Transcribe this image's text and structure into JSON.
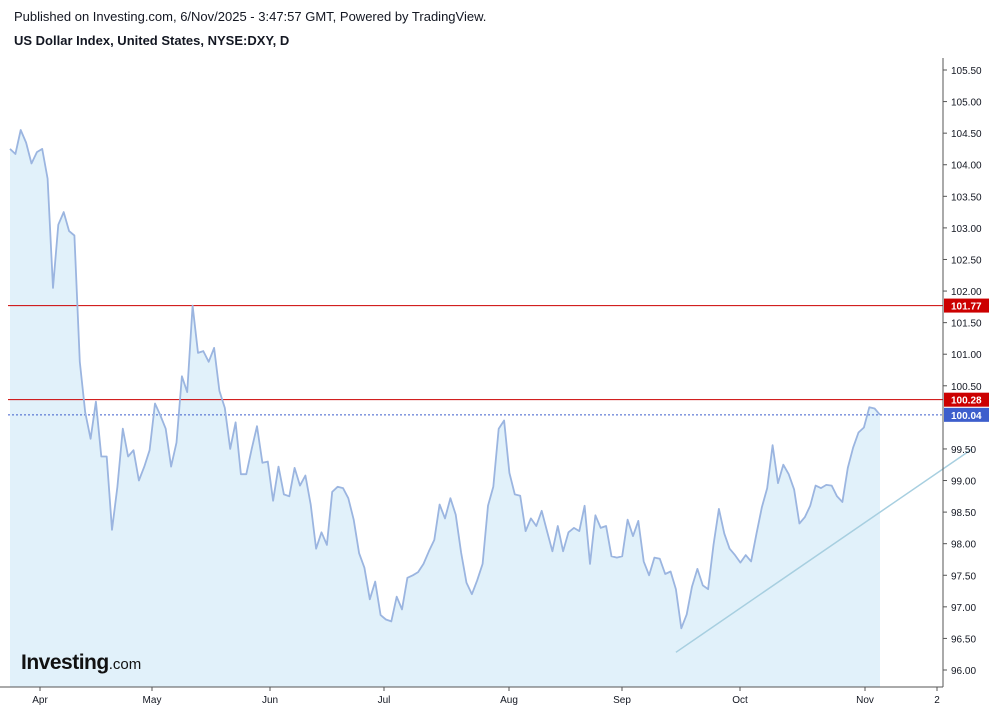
{
  "header": {
    "published": "Published on Investing.com, 6/Nov/2025 - 3:47:57 GMT, Powered by TradingView.",
    "title": "US Dollar Index, United States, NYSE:DXY, D"
  },
  "logo": {
    "main": "Investing",
    "tld": ".com"
  },
  "colors": {
    "line": "#9bb5e0",
    "fill": "#e1f1fa",
    "resistance": "#cc0000",
    "current": "#3d5ecc",
    "trendline": "#a7cfe0",
    "grid": "#e0e3eb"
  },
  "chart_data": {
    "type": "line",
    "title": "US Dollar Index, United States, NYSE:DXY, D",
    "xlabel": "",
    "ylabel": "",
    "ylim": [
      95.8,
      105.6
    ],
    "x_ticks": [
      "Apr",
      "May",
      "Jun",
      "Jul",
      "Aug",
      "Sep",
      "Oct",
      "Nov",
      "2"
    ],
    "y_ticks": [
      "105.50",
      "105.00",
      "104.50",
      "104.00",
      "103.50",
      "103.00",
      "102.50",
      "102.00",
      "101.50",
      "101.00",
      "100.50",
      "99.50",
      "99.00",
      "98.50",
      "98.00",
      "97.50",
      "97.00",
      "96.50",
      "96.00"
    ],
    "series": [
      {
        "values": [
          104.25,
          104.17,
          104.55,
          104.35,
          104.02,
          104.2,
          104.25,
          103.78,
          102.05,
          103.05,
          103.25,
          102.95,
          102.88,
          100.88,
          100.08,
          99.66,
          100.25,
          99.38,
          99.38,
          98.22,
          98.9,
          99.82,
          99.38,
          99.48,
          99.0,
          99.22,
          99.48,
          100.22,
          100.03,
          99.82,
          99.22,
          99.6,
          100.65,
          100.4,
          101.77,
          101.02,
          101.05,
          100.88,
          101.1,
          100.42,
          100.15,
          99.5,
          99.92,
          99.1,
          99.1,
          99.5,
          99.86,
          99.28,
          99.3,
          98.68,
          99.22,
          98.78,
          98.75,
          99.2,
          98.92,
          99.08,
          98.62,
          97.92,
          98.18,
          97.98,
          98.82,
          98.9,
          98.88,
          98.72,
          98.38,
          97.85,
          97.62,
          97.12,
          97.4,
          96.87,
          96.8,
          96.77,
          97.16,
          96.96,
          97.46,
          97.5,
          97.55,
          97.68,
          97.88,
          98.06,
          98.62,
          98.4,
          98.72,
          98.46,
          97.86,
          97.38,
          97.2,
          97.42,
          97.68,
          98.6,
          98.9,
          99.82,
          99.95,
          99.12,
          98.78,
          98.76,
          98.2,
          98.4,
          98.28,
          98.52,
          98.2,
          97.88,
          98.28,
          97.88,
          98.18,
          98.25,
          98.2,
          98.6,
          97.68,
          98.45,
          98.25,
          98.28,
          97.8,
          97.78,
          97.8,
          98.38,
          98.12,
          98.36,
          97.72,
          97.5,
          97.78,
          97.76,
          97.52,
          97.56,
          97.28,
          96.66,
          96.88,
          97.32,
          97.6,
          97.34,
          97.28,
          97.98,
          98.55,
          98.16,
          97.92,
          97.82,
          97.7,
          97.82,
          97.72,
          98.16,
          98.58,
          98.88,
          99.56,
          98.96,
          99.25,
          99.1,
          98.86,
          98.32,
          98.42,
          98.6,
          98.92,
          98.88,
          98.93,
          98.92,
          98.75,
          98.66,
          99.2,
          99.52,
          99.76,
          99.84,
          100.16,
          100.14,
          100.04
        ]
      }
    ],
    "horizontal_lines": [
      {
        "label": "101.77",
        "value": 101.77
      },
      {
        "label": "100.28",
        "value": 100.28
      },
      {
        "label": "100.04",
        "value": 100.04
      }
    ],
    "trendline": {
      "start": {
        "index": 124,
        "value": 96.28
      },
      "end": {
        "index": 173,
        "value": 99.5
      }
    },
    "grid": false,
    "legend": "none"
  }
}
